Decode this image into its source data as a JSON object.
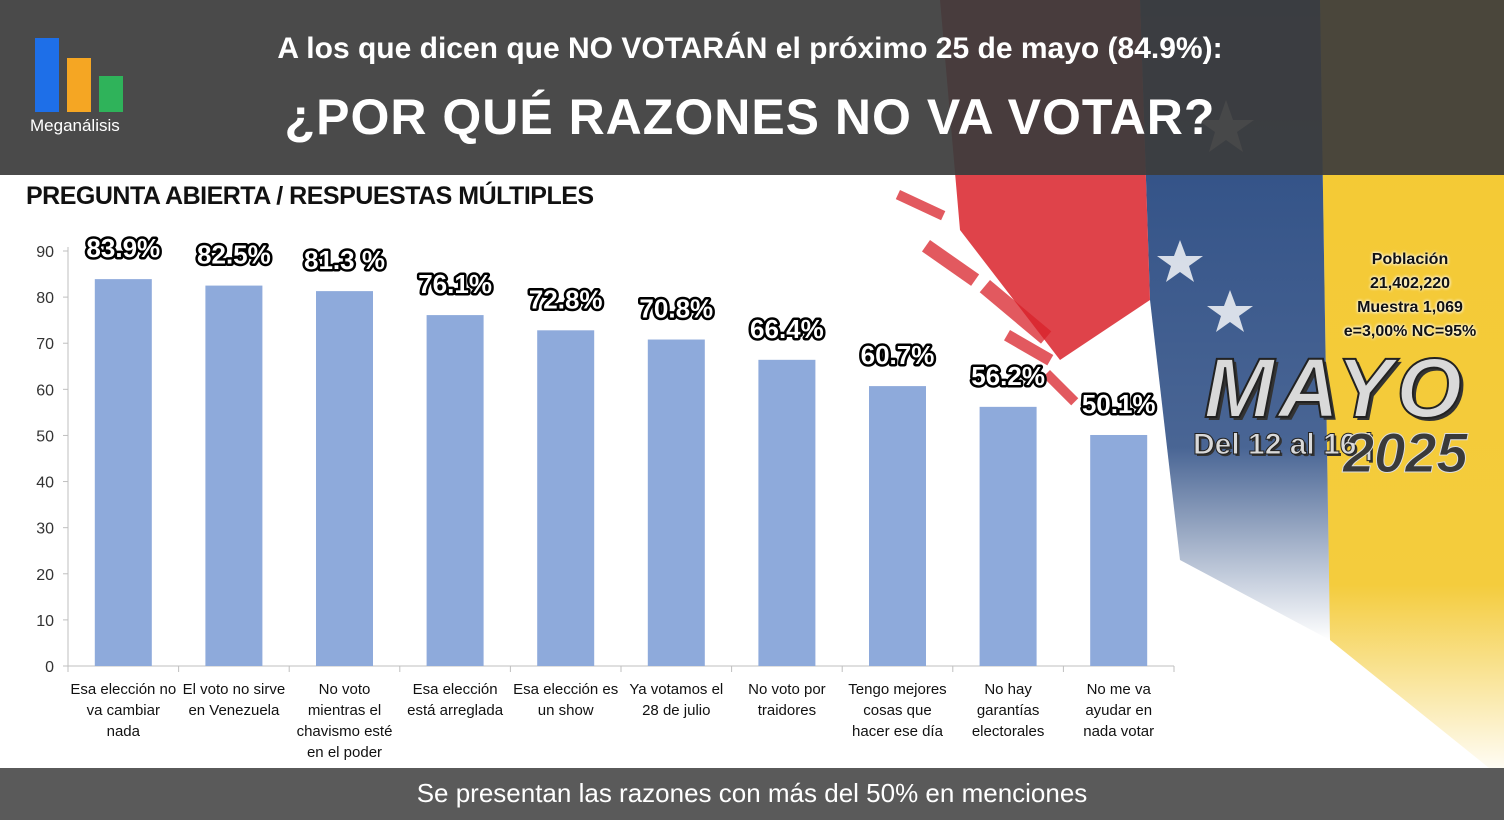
{
  "header": {
    "title": "A los que dicen que NO VOTARÁN el próximo 25 de mayo (84.9%):",
    "question": "¿POR QUÉ RAZONES NO VA VOTAR?",
    "logo_text": "Meganálisis"
  },
  "subtitle": "PREGUNTA ABIERTA / RESPUESTAS MÚLTIPLES",
  "sample": {
    "population_label": "Población",
    "population_value": "21,402,220",
    "sample_size": "Muestra 1,069",
    "error": "e=3,00%  NC=95%"
  },
  "badge": {
    "month": "MAYO",
    "range": "Del 12 al 16 |",
    "year": "2025"
  },
  "footer": "Se presentan las razones con más del 50% en menciones",
  "colors": {
    "bar": "#8eaadb",
    "header_bg": "#3c3c3c",
    "footer_bg": "#5a5a5a",
    "logo_blue": "#1e6fe8",
    "logo_orange": "#f5a623",
    "logo_green": "#2fb35a",
    "flag_yellow": "#f2c31b",
    "flag_blue": "#1c3f7a",
    "flag_red": "#d9222a"
  },
  "chart_data": {
    "type": "bar",
    "categories": [
      [
        "Esa elección no",
        "va cambiar",
        "nada"
      ],
      [
        "El voto no sirve",
        "en Venezuela"
      ],
      [
        "No voto",
        "mientras el",
        "chavismo esté",
        "en el poder"
      ],
      [
        "Esa elección",
        "está arreglada"
      ],
      [
        "Esa elección es",
        "un show"
      ],
      [
        "Ya votamos el",
        "28 de julio"
      ],
      [
        "No voto por",
        "traidores"
      ],
      [
        "Tengo mejores",
        "cosas que",
        "hacer ese día"
      ],
      [
        "No hay",
        "garantías",
        "electorales"
      ],
      [
        "No me va",
        "ayudar en",
        "nada votar"
      ]
    ],
    "values": [
      83.9,
      82.5,
      81.3,
      76.1,
      72.8,
      70.8,
      66.4,
      60.7,
      56.2,
      50.1
    ],
    "data_labels": [
      "83.9%",
      "82.5%",
      "81.3 %",
      "76.1%",
      "72.8%",
      "70.8%",
      "66.4%",
      "60.7%",
      "56.2%",
      "50.1%"
    ],
    "yticks": [
      0,
      10,
      20,
      30,
      40,
      50,
      60,
      70,
      80,
      90
    ],
    "ylim": [
      0,
      90
    ],
    "grid": false,
    "legend": "none"
  }
}
